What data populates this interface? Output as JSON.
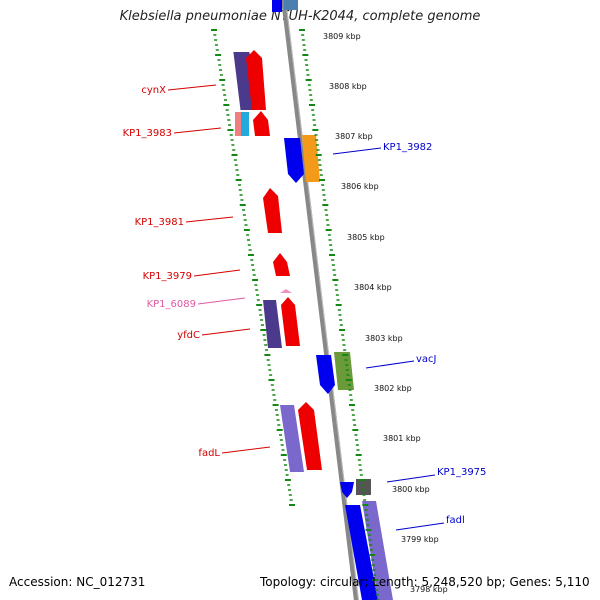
{
  "title": "Klebsiella pneumoniae NTUH-K2044, complete genome",
  "footer": {
    "accession": "Accession: NC_012731",
    "topology": "Topology: circular; Length: 5,248,520 bp; Genes: 5,110"
  },
  "colors": {
    "left_label": "#d40000",
    "right_label": "#0000cc",
    "pink_label": "#e05aa0",
    "tick_green": "#118811",
    "backbone": "#888888"
  },
  "scale_ticks": [
    "3809 kbp",
    "3808 kbp",
    "3807 kbp",
    "3806 kbp",
    "3805 kbp",
    "3804 kbp",
    "3803 kbp",
    "3802 kbp",
    "3801 kbp",
    "3800 kbp",
    "3799 kbp",
    "3798 kbp"
  ],
  "left_labels": [
    {
      "text": "cynX",
      "color": "red"
    },
    {
      "text": "KP1_3983",
      "color": "red"
    },
    {
      "text": "KP1_3981",
      "color": "red"
    },
    {
      "text": "KP1_3979",
      "color": "red"
    },
    {
      "text": "KP1_6089",
      "color": "pink"
    },
    {
      "text": "yfdC",
      "color": "red"
    },
    {
      "text": "fadL",
      "color": "red"
    }
  ],
  "right_labels": [
    {
      "text": "KP1_3982"
    },
    {
      "text": "vacJ"
    },
    {
      "text": "KP1_3975"
    },
    {
      "text": "fadl"
    }
  ]
}
